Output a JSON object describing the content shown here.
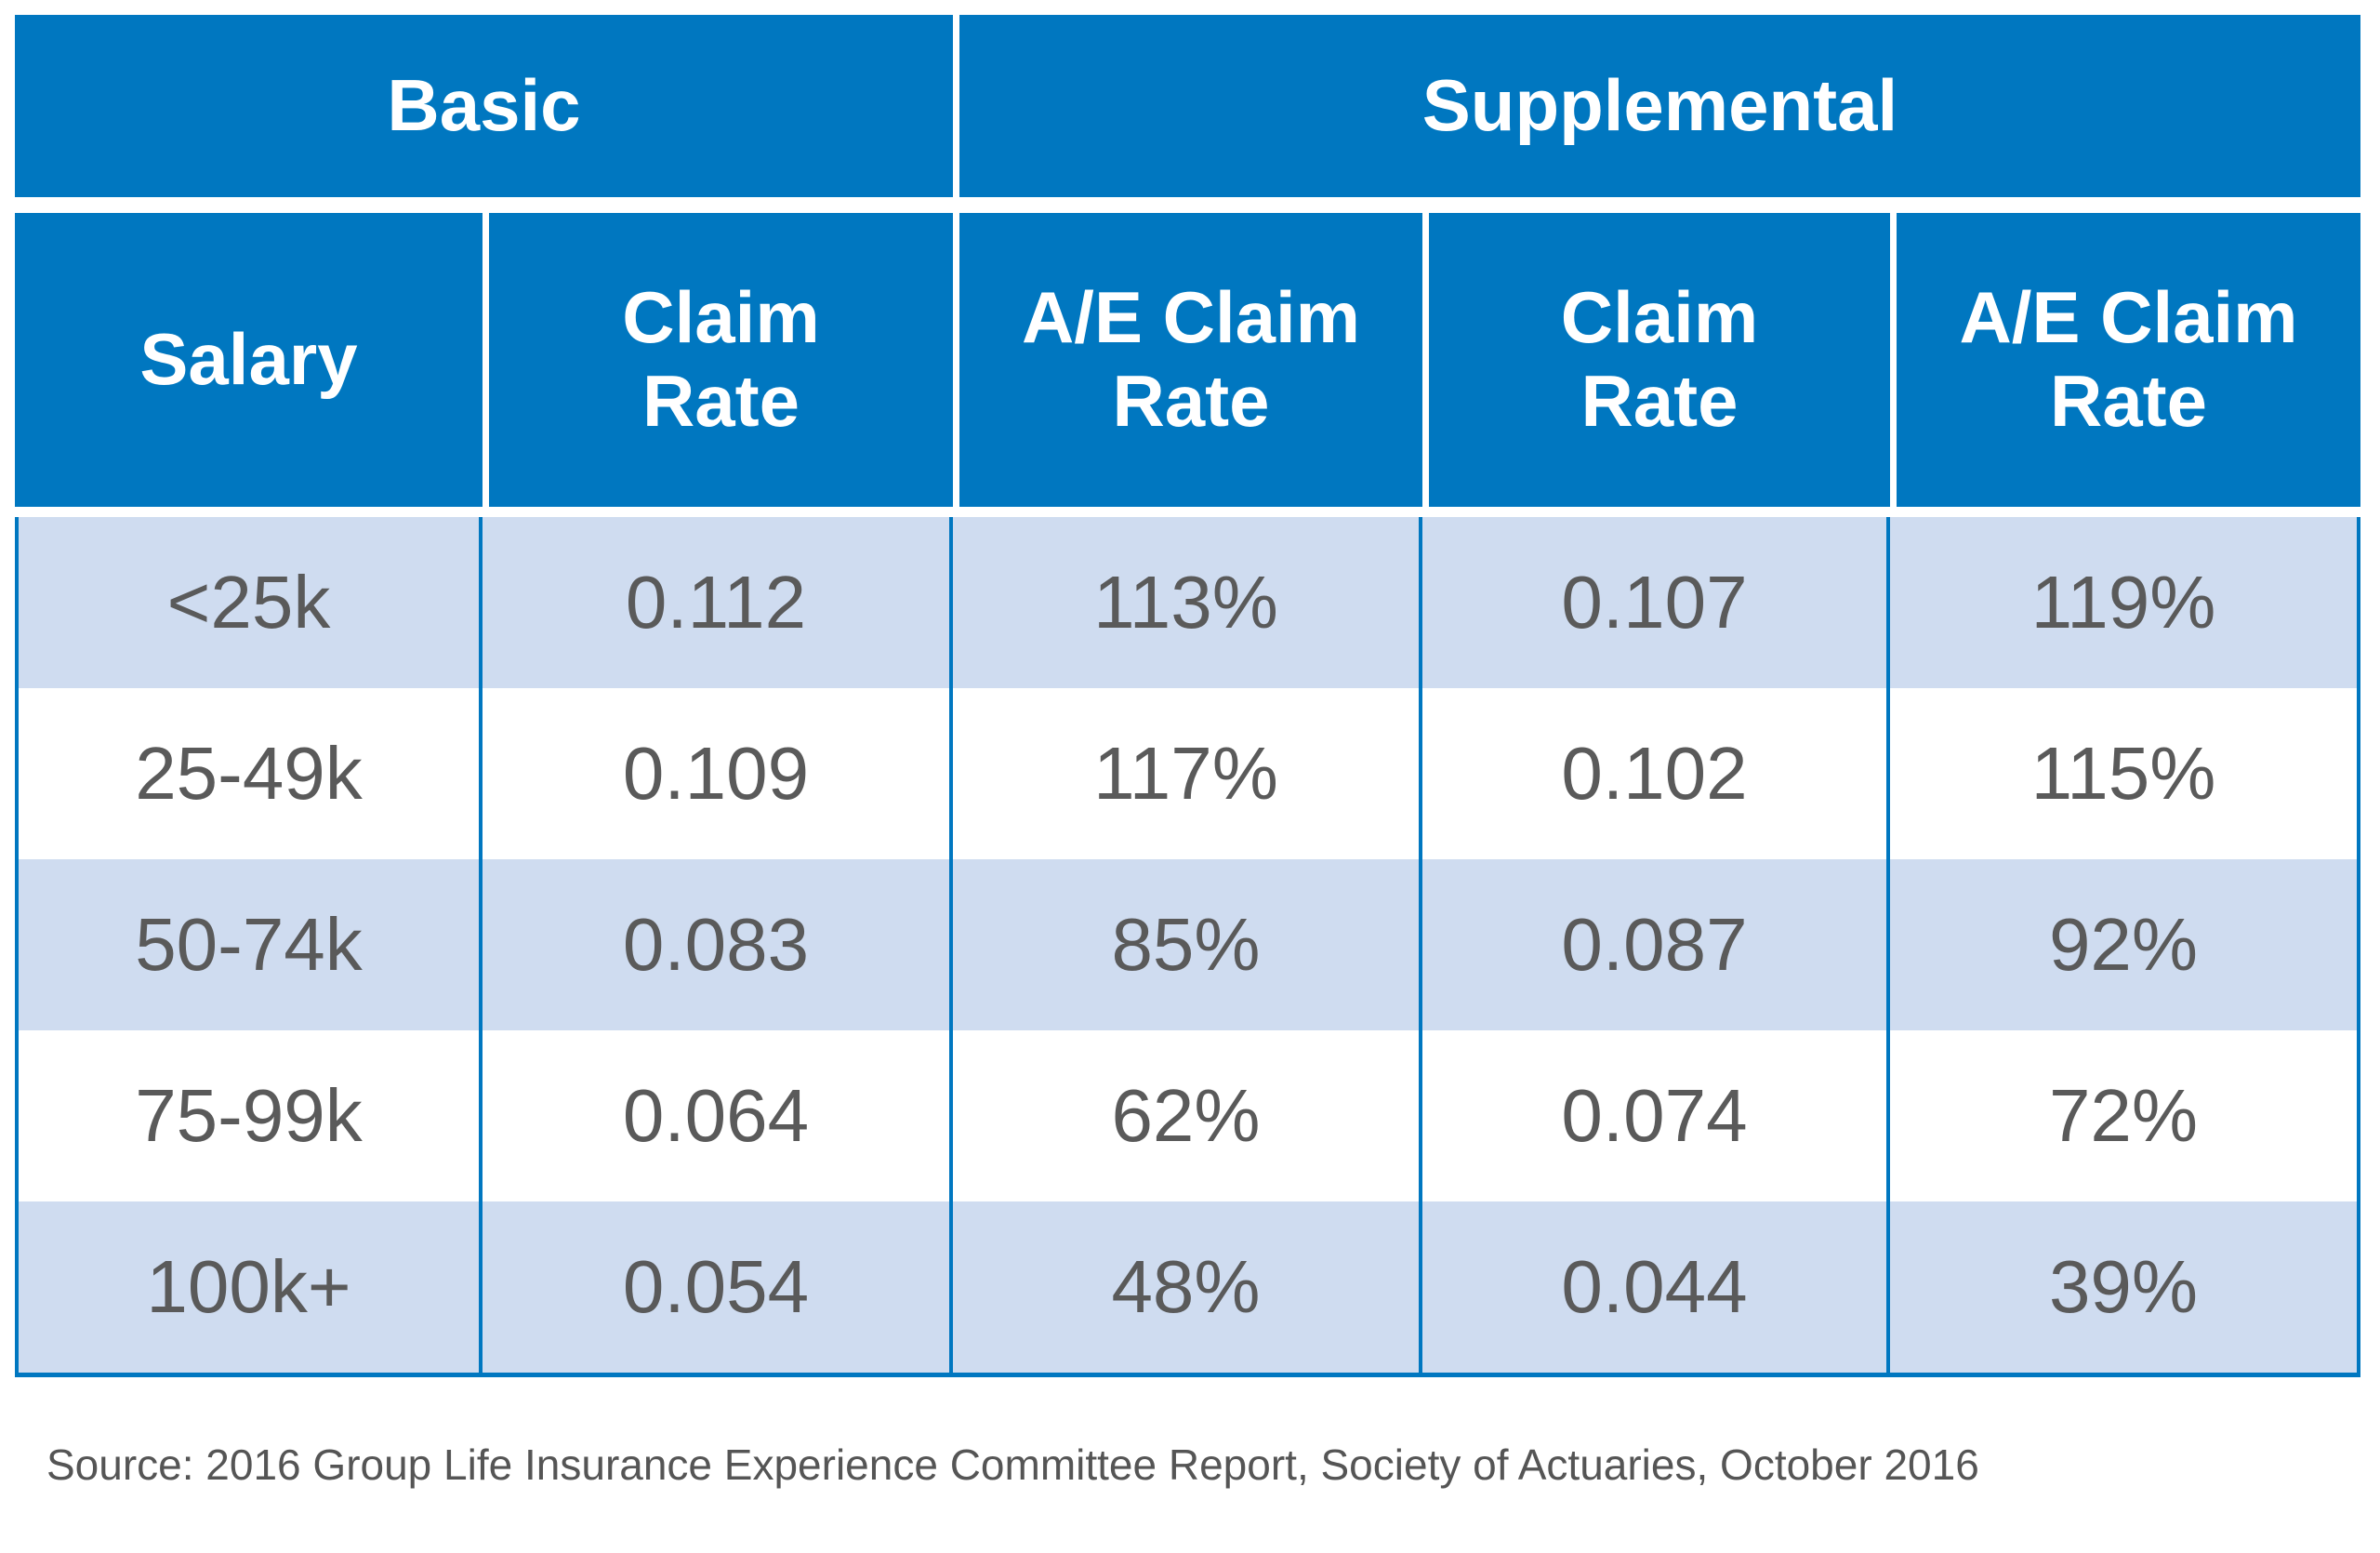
{
  "table": {
    "group_headers": [
      "Basic",
      "Supplemental"
    ],
    "columns": [
      "Salary",
      "Claim Rate",
      "A/E Claim Rate",
      "Claim Rate",
      "A/E Claim Rate"
    ],
    "rows": [
      [
        "<25k",
        "0.112",
        "113%",
        "0.107",
        "119%"
      ],
      [
        "25-49k",
        "0.109",
        "117%",
        "0.102",
        "115%"
      ],
      [
        "50-74k",
        "0.083",
        "85%",
        "0.087",
        "92%"
      ],
      [
        "75-99k",
        "0.064",
        "62%",
        "0.074",
        "72%"
      ],
      [
        "100k+",
        "0.054",
        "48%",
        "0.044",
        "39%"
      ]
    ]
  },
  "source": "Source: 2016 Group Life Insurance Experience Committee Report, Society of Actuaries, October 2016"
}
